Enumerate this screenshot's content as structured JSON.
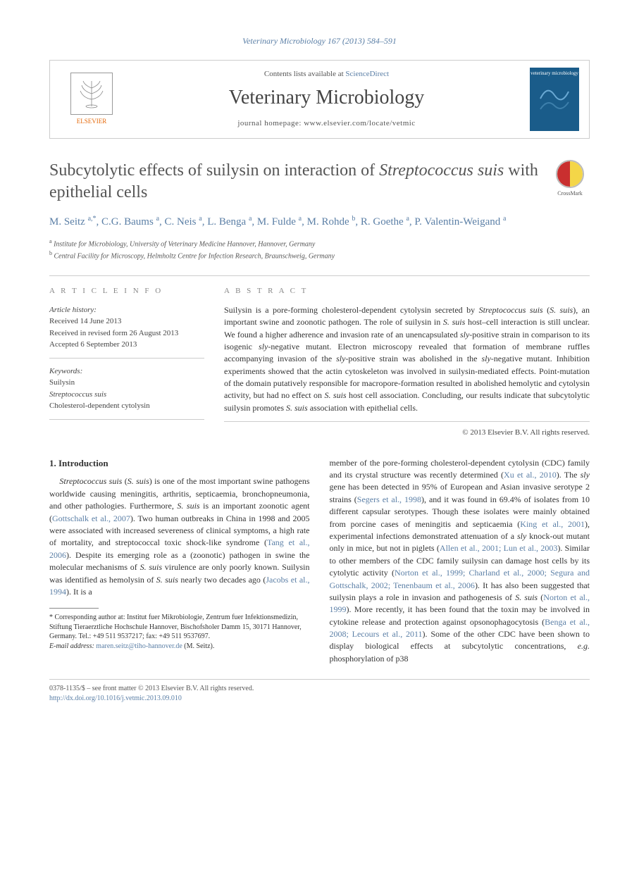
{
  "journal_ref": "Veterinary Microbiology 167 (2013) 584–591",
  "header": {
    "contents_prefix": "Contents lists available at ",
    "contents_link": "ScienceDirect",
    "journal_title": "Veterinary Microbiology",
    "homepage_label": "journal homepage: www.elsevier.com/locate/vetmic",
    "elsevier_label": "ELSEVIER",
    "cover_label": "veterinary microbiology"
  },
  "crossmark_label": "CrossMark",
  "title_html": "Subcytolytic effects of suilysin on interaction of <em>Streptococcus suis</em> with epithelial cells",
  "authors_html": "M. Seitz <sup>a,*</sup>, C.G. Baums <sup>a</sup>, C. Neis <sup>a</sup>, L. Benga <sup>a</sup>, M. Fulde <sup>a</sup>, M. Rohde <sup>b</sup>, R. Goethe <sup>a</sup>, P. Valentin-Weigand <sup>a</sup>",
  "affiliations": {
    "a": "Institute for Microbiology, University of Veterinary Medicine Hannover, Hannover, Germany",
    "b": "Central Facility for Microscopy, Helmholtz Centre for Infection Research, Braunschweig, Germany"
  },
  "article_info": {
    "heading": "A R T I C L E  I N F O",
    "history_label": "Article history:",
    "history": [
      "Received 14 June 2013",
      "Received in revised form 26 August 2013",
      "Accepted 6 September 2013"
    ],
    "keywords_label": "Keywords:",
    "keywords": [
      "Suilysin",
      "Streptococcus suis",
      "Cholesterol-dependent cytolysin"
    ]
  },
  "abstract": {
    "heading": "A B S T R A C T",
    "text_html": "Suilysin is a pore-forming cholesterol-dependent cytolysin secreted by <em>Streptococcus suis</em> (<em>S. suis</em>), an important swine and zoonotic pathogen. The role of suilysin in <em>S. suis</em> host–cell interaction is still unclear. We found a higher adherence and invasion rate of an unencapsulated <em>sly</em>-positive strain in comparison to its isogenic <em>sly</em>-negative mutant. Electron microscopy revealed that formation of membrane ruffles accompanying invasion of the <em>sly</em>-positive strain was abolished in the <em>sly</em>-negative mutant. Inhibition experiments showed that the actin cytoskeleton was involved in suilysin-mediated effects. Point-mutation of the domain putatively responsible for macropore-formation resulted in abolished hemolytic and cytolysin activity, but had no effect on <em>S. suis</em> host cell association. Concluding, our results indicate that subcytolytic suilysin promotes <em>S. suis</em> association with epithelial cells.",
    "copyright": "© 2013 Elsevier B.V. All rights reserved."
  },
  "body": {
    "section_heading": "1. Introduction",
    "col1_html": "<em>Streptococcus suis</em> (<em>S. suis</em>) is one of the most important swine pathogens worldwide causing meningitis, arthritis, septicaemia, bronchopneumonia, and other pathologies. Furthermore, <em>S. suis</em> is an important zoonotic agent (<span class=\"cite\">Gottschalk et al., 2007</span>). Two human outbreaks in China in 1998 and 2005 were associated with increased severeness of clinical symptoms, a high rate of mortality, and streptococcal toxic shock-like syndrome (<span class=\"cite\">Tang et al., 2006</span>). Despite its emerging role as a (zoonotic) pathogen in swine the molecular mechanisms of <em>S. suis</em> virulence are only poorly known. Suilysin was identified as hemolysin of <em>S. suis</em> nearly two decades ago (<span class=\"cite\">Jacobs et al., 1994</span>). It is a",
    "col2_html": "member of the pore-forming cholesterol-dependent cytolysin (CDC) family and its crystal structure was recently determined (<span class=\"cite\">Xu et al., 2010</span>). The <em>sly</em> gene has been detected in 95% of European and Asian invasive serotype 2 strains (<span class=\"cite\">Segers et al., 1998</span>), and it was found in 69.4% of isolates from 10 different capsular serotypes. Though these isolates were mainly obtained from porcine cases of meningitis and septicaemia (<span class=\"cite\">King et al., 2001</span>), experimental infections demonstrated attenuation of a <em>sly</em> knock-out mutant only in mice, but not in piglets (<span class=\"cite\">Allen et al., 2001; Lun et al., 2003</span>). Similar to other members of the CDC family suilysin can damage host cells by its cytolytic activity (<span class=\"cite\">Norton et al., 1999; Charland et al., 2000; Segura and Gottschalk, 2002; Tenenbaum et al., 2006</span>). It has also been suggested that suilysin plays a role in invasion and pathogenesis of <em>S. suis</em> (<span class=\"cite\">Norton et al., 1999</span>). More recently, it has been found that the toxin may be involved in cytokine release and protection against opsonophagocytosis (<span class=\"cite\">Benga et al., 2008; Lecours et al., 2011</span>). Some of the other CDC have been shown to display biological effects at subcytolytic concentrations, <em>e.g.</em> phosphorylation of p38"
  },
  "footnote": {
    "corr_html": "* Corresponding author at: Institut fuer Mikrobiologie, Zentrum fuer Infektionsmedizin, Stiftung Tieraerztliche Hochschule Hannover, Bischofsholer Damm 15, 30171 Hannover, Germany. Tel.: +49 511 9537217; fax: +49 511 9537697.",
    "email_label": "E-mail address:",
    "email": "maren.seitz@tiho-hannover.de",
    "email_suffix": "(M. Seitz)."
  },
  "footer": {
    "issn_line": "0378-1135/$ – see front matter © 2013 Elsevier B.V. All rights reserved.",
    "doi": "http://dx.doi.org/10.1016/j.vetmic.2013.09.010"
  },
  "colors": {
    "link": "#5b7fa6",
    "elsevier_orange": "#e5690a",
    "text": "#333333",
    "rule": "#cccccc"
  }
}
